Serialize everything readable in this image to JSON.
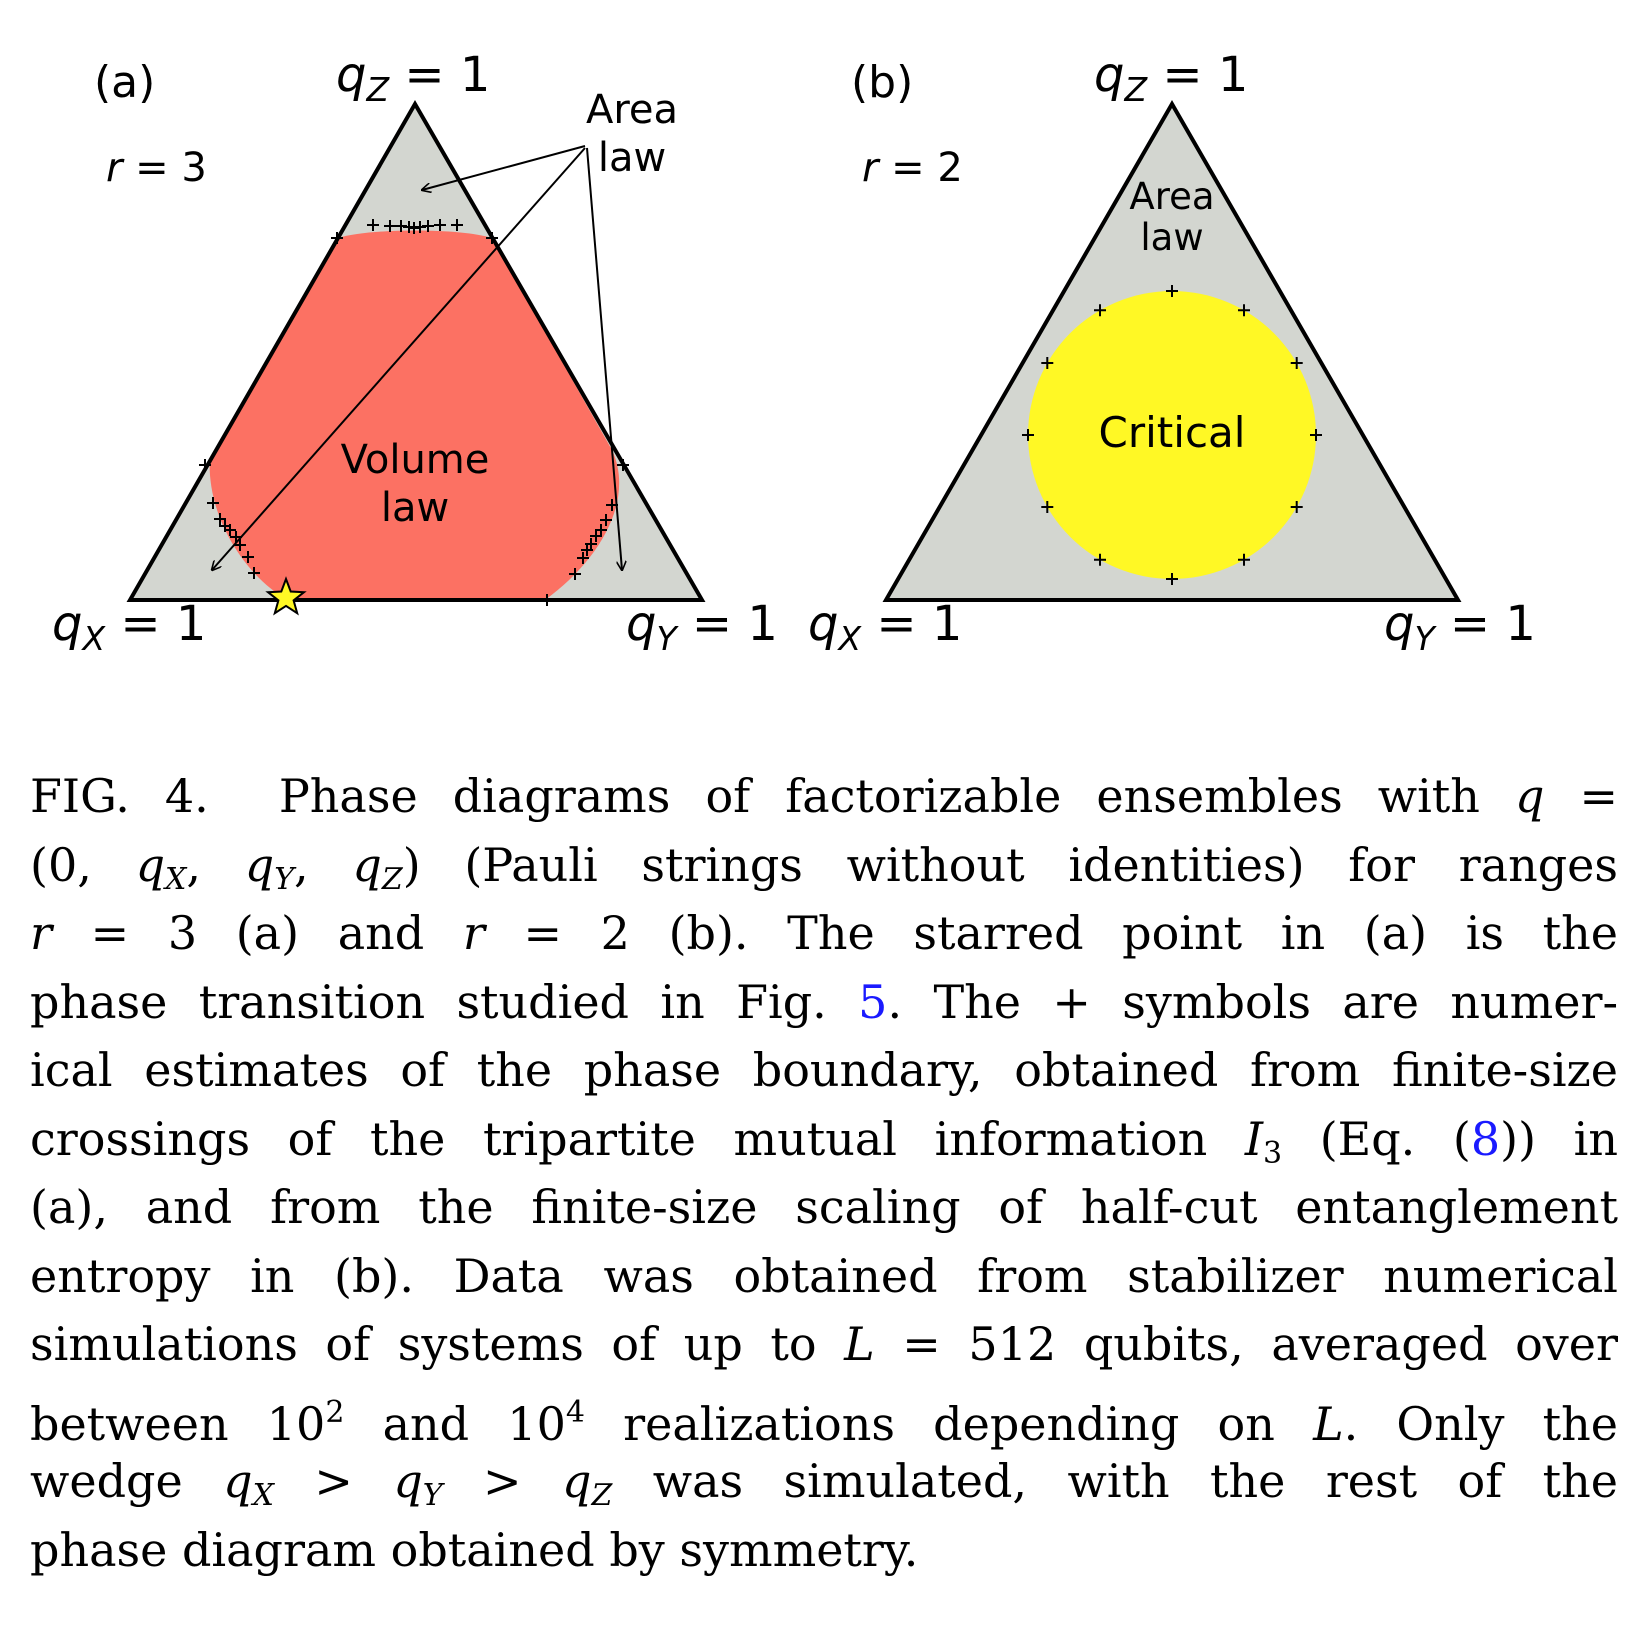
{
  "panel_a": {
    "tag": "(a)",
    "range_label": "r = 3",
    "top_corner": "q_Z = 1",
    "left_corner": "q_X = 1",
    "right_corner": "q_Y = 1",
    "area_law": [
      "Area",
      "law"
    ],
    "volume_law": [
      "Volume",
      "law"
    ]
  },
  "panel_b": {
    "tag": "(b)",
    "range_label": "r = 2",
    "top_corner": "q_Z = 1",
    "left_corner": "q_X = 1",
    "right_corner": "q_Y = 1",
    "area_law": [
      "Area",
      "law"
    ],
    "critical": "Critical"
  },
  "colors": {
    "area_law_gray": "#d3d6d0",
    "volume_law_red": "#fc7163",
    "critical_yellow": "#fff825",
    "star": "#fff825",
    "link_blue": "#1a1aff"
  },
  "caption": {
    "fig_label": "FIG. 4.",
    "ref_fig": "5",
    "ref_eq": "8",
    "lines": [
      "Phase diagrams of factorizable ensembles with q =",
      "(0, qX, qY, qZ) (Pauli strings without identities) for ranges",
      "r = 3 (a) and r = 2 (b). The starred point in (a) is the",
      "phase transition studied in Fig. 5. The + symbols are numer-",
      "ical estimates of the phase boundary, obtained from finite-size",
      "crossings of the tripartite mutual information I3 (Eq. (8)) in",
      "(a), and from the finite-size scaling of half-cut entanglement",
      "entropy in (b). Data was obtained from stabilizer numerical",
      "simulations of systems of up to L = 512 qubits, averaged over",
      "between 10^2 and 10^4 realizations depending on L. Only the",
      "wedge qX > qY > qZ was simulated, with the rest of the",
      "phase diagram obtained by symmetry."
    ]
  }
}
